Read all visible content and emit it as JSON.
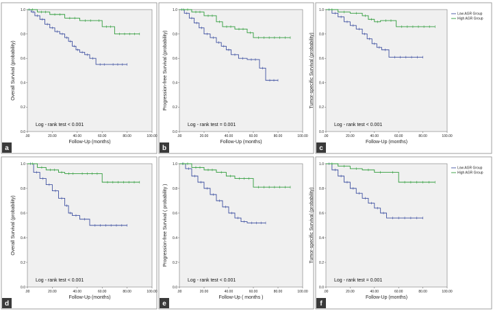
{
  "colors": {
    "low": "#3d4fa0",
    "high": "#2e9b3a",
    "plot_bg": "#f0f0f0",
    "badge": "#3a3a3a"
  },
  "legend": {
    "low": "Low AGR Group",
    "high": "High AGR Group"
  },
  "chart_data": [
    {
      "panel": "a",
      "type": "line",
      "subtype": "kaplan-meier step",
      "xlabel": "Follow-Up (months)",
      "ylabel": "Overall Survival (probability)",
      "xlim": [
        0,
        100
      ],
      "ylim": [
        0,
        1.0
      ],
      "xticks": [
        ".00",
        "20.00",
        "40.00",
        "60.00",
        "80.00",
        "100.00"
      ],
      "yticks": [
        "0.0",
        "0.2",
        "0.4",
        "0.6",
        "0.8",
        "1.0"
      ],
      "annotation": "Log - rank test  < 0.001",
      "legend": false,
      "grid": false,
      "series": [
        {
          "group": "low",
          "x": [
            0,
            3,
            6,
            10,
            14,
            18,
            22,
            26,
            30,
            33,
            36,
            39,
            42,
            46,
            50,
            55,
            65,
            80
          ],
          "y": [
            1.0,
            0.98,
            0.95,
            0.92,
            0.88,
            0.85,
            0.82,
            0.8,
            0.77,
            0.74,
            0.7,
            0.67,
            0.65,
            0.63,
            0.6,
            0.55,
            0.55,
            0.55
          ]
        },
        {
          "group": "high",
          "x": [
            0,
            8,
            18,
            30,
            42,
            55,
            60,
            70,
            90
          ],
          "y": [
            1.0,
            0.98,
            0.96,
            0.93,
            0.91,
            0.91,
            0.86,
            0.8,
            0.8
          ]
        }
      ]
    },
    {
      "panel": "b",
      "type": "line",
      "subtype": "kaplan-meier step",
      "xlabel": "Follow-Up (months)",
      "ylabel": "Progression-free Survival (probability)",
      "xlim": [
        0,
        100
      ],
      "ylim": [
        0,
        1.0
      ],
      "xticks": [
        ".00",
        "20.00",
        "40.00",
        "60.00",
        "80.00",
        "100.00"
      ],
      "yticks": [
        "0.0",
        "0.2",
        "0.4",
        "0.6",
        "0.8",
        "1.0"
      ],
      "annotation": "Log - rank test  = 0.001",
      "legend": false,
      "grid": false,
      "series": [
        {
          "group": "low",
          "x": [
            0,
            4,
            8,
            12,
            16,
            20,
            25,
            30,
            34,
            38,
            42,
            48,
            55,
            65,
            70,
            80
          ],
          "y": [
            1.0,
            0.97,
            0.93,
            0.89,
            0.85,
            0.8,
            0.77,
            0.73,
            0.7,
            0.67,
            0.63,
            0.6,
            0.59,
            0.52,
            0.42,
            0.42
          ]
        },
        {
          "group": "high",
          "x": [
            0,
            10,
            20,
            30,
            35,
            45,
            55,
            60,
            90
          ],
          "y": [
            1.0,
            0.98,
            0.95,
            0.9,
            0.86,
            0.84,
            0.81,
            0.77,
            0.77
          ]
        }
      ]
    },
    {
      "panel": "c",
      "type": "line",
      "subtype": "kaplan-meier step",
      "xlabel": "Follow-Up (months)",
      "ylabel": "Tumor-specific Survival (probability)",
      "xlim": [
        0,
        100
      ],
      "ylim": [
        0,
        1.0
      ],
      "xticks": [
        ".00",
        "20.00",
        "40.00",
        "60.00",
        "80.00",
        "100.00"
      ],
      "yticks": [
        "0.0",
        "0.2",
        "0.4",
        "0.6",
        "0.8",
        "1.0"
      ],
      "annotation": "Log - rank test  < 0.001",
      "legend": true,
      "grid": false,
      "series": [
        {
          "group": "low",
          "x": [
            0,
            5,
            10,
            15,
            20,
            25,
            30,
            34,
            38,
            42,
            46,
            52,
            80
          ],
          "y": [
            1.0,
            0.97,
            0.94,
            0.9,
            0.87,
            0.84,
            0.8,
            0.76,
            0.72,
            0.69,
            0.67,
            0.61,
            0.61
          ]
        },
        {
          "group": "high",
          "x": [
            0,
            10,
            20,
            30,
            35,
            40,
            45,
            58,
            90
          ],
          "y": [
            1.0,
            0.98,
            0.97,
            0.95,
            0.92,
            0.9,
            0.91,
            0.86,
            0.86
          ]
        }
      ]
    },
    {
      "panel": "d",
      "type": "line",
      "subtype": "kaplan-meier step",
      "xlabel": "Follow-Up (months)",
      "ylabel": "Overall Survival (probability)",
      "xlim": [
        0,
        100
      ],
      "ylim": [
        0,
        1.0
      ],
      "xticks": [
        ".00",
        "20.00",
        "40.00",
        "60.00",
        "80.00",
        "100.00"
      ],
      "yticks": [
        "0.0",
        "0.2",
        "0.4",
        "0.6",
        "0.8",
        "1.0"
      ],
      "annotation": "Log - rank test  < 0.001",
      "legend": false,
      "grid": false,
      "series": [
        {
          "group": "low",
          "x": [
            0,
            5,
            10,
            15,
            20,
            25,
            30,
            33,
            36,
            42,
            50,
            80
          ],
          "y": [
            1.0,
            0.93,
            0.88,
            0.83,
            0.78,
            0.72,
            0.66,
            0.6,
            0.58,
            0.55,
            0.5,
            0.5
          ]
        },
        {
          "group": "high",
          "x": [
            0,
            8,
            15,
            25,
            30,
            40,
            60,
            90
          ],
          "y": [
            1.0,
            0.97,
            0.95,
            0.93,
            0.92,
            0.92,
            0.85,
            0.85
          ]
        }
      ]
    },
    {
      "panel": "e",
      "type": "line",
      "subtype": "kaplan-meier step",
      "xlabel": "Follow-Up   ( months )",
      "ylabel": "Progression-free Survival  ( probability )",
      "xlim": [
        0,
        100
      ],
      "ylim": [
        0,
        1.0
      ],
      "xticks": [
        ".00",
        "20.00",
        "40.00",
        "60.00",
        "80.00",
        "100.00"
      ],
      "yticks": [
        "0.0",
        "0.2",
        "0.4",
        "0.6",
        "0.8",
        "1.0"
      ],
      "annotation": "Log - rank test  < 0.001",
      "legend": false,
      "grid": false,
      "series": [
        {
          "group": "low",
          "x": [
            0,
            5,
            10,
            15,
            20,
            25,
            30,
            35,
            40,
            45,
            50,
            55,
            70
          ],
          "y": [
            1.0,
            0.96,
            0.9,
            0.85,
            0.8,
            0.75,
            0.7,
            0.65,
            0.6,
            0.56,
            0.53,
            0.52,
            0.52
          ]
        },
        {
          "group": "high",
          "x": [
            0,
            10,
            20,
            30,
            38,
            45,
            60,
            90
          ],
          "y": [
            1.0,
            0.97,
            0.95,
            0.93,
            0.9,
            0.88,
            0.81,
            0.81
          ]
        }
      ]
    },
    {
      "panel": "f",
      "type": "line",
      "subtype": "kaplan-meier step",
      "xlabel": "Follow-Up (months)",
      "ylabel": "Tumor-specific Survival (probability)",
      "xlim": [
        0,
        100
      ],
      "ylim": [
        0,
        1.0
      ],
      "xticks": [
        ".00",
        "20.00",
        "40.00",
        "60.00",
        "80.00",
        "100.00"
      ],
      "yticks": [
        "0.0",
        "0.2",
        "0.4",
        "0.6",
        "0.8",
        "1.0"
      ],
      "annotation": "Log - rank test  = 0.001",
      "legend": true,
      "grid": false,
      "series": [
        {
          "group": "low",
          "x": [
            0,
            5,
            10,
            15,
            20,
            25,
            30,
            35,
            40,
            45,
            50,
            80
          ],
          "y": [
            1.0,
            0.95,
            0.9,
            0.85,
            0.8,
            0.76,
            0.72,
            0.68,
            0.64,
            0.6,
            0.56,
            0.56
          ]
        },
        {
          "group": "high",
          "x": [
            0,
            10,
            20,
            30,
            40,
            50,
            60,
            90
          ],
          "y": [
            1.0,
            0.98,
            0.96,
            0.95,
            0.93,
            0.93,
            0.85,
            0.85
          ]
        }
      ]
    }
  ]
}
